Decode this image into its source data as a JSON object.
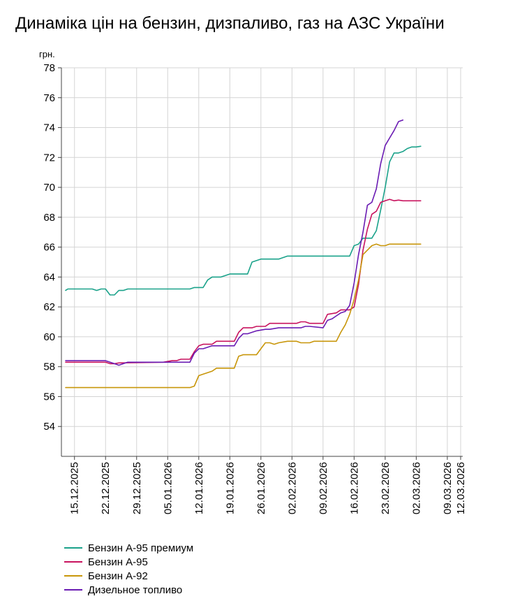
{
  "chart_data": {
    "type": "line",
    "title": "Динаміка цін на бензин, дизпаливо, газ на АЗС України",
    "ylabel": "грн.",
    "xlabel": "",
    "ylim": [
      52,
      78
    ],
    "yticks": [
      54,
      56,
      58,
      60,
      62,
      64,
      66,
      68,
      70,
      72,
      74,
      76,
      78
    ],
    "grid": true,
    "legend_position": "bottom-left",
    "x_start": "13.12.2025",
    "x_end": "12.03.2026",
    "x_ticks": [
      {
        "day": 2,
        "label": "15.12.2025"
      },
      {
        "day": 9,
        "label": "22.12.2025"
      },
      {
        "day": 16,
        "label": "29.12.2025"
      },
      {
        "day": 23,
        "label": "05.01.2026"
      },
      {
        "day": 30,
        "label": "12.01.2026"
      },
      {
        "day": 37,
        "label": "19.01.2026"
      },
      {
        "day": 44,
        "label": "26.01.2026"
      },
      {
        "day": 51,
        "label": "02.02.2026"
      },
      {
        "day": 58,
        "label": "09.02.2026"
      },
      {
        "day": 65,
        "label": "16.02.2026"
      },
      {
        "day": 72,
        "label": "23.02.2026"
      },
      {
        "day": 79,
        "label": "02.03.2026"
      },
      {
        "day": 86,
        "label": "09.03.2026"
      },
      {
        "day": 89,
        "label": "12.03.2026"
      }
    ],
    "series": [
      {
        "name": "Бензин А-95 премиум",
        "color": "#1aa28a",
        "points": [
          [
            0,
            63.1
          ],
          [
            0.5,
            63.2
          ],
          [
            6,
            63.2
          ],
          [
            7,
            63.1
          ],
          [
            8,
            63.2
          ],
          [
            9,
            63.2
          ],
          [
            10,
            62.8
          ],
          [
            11,
            62.8
          ],
          [
            12,
            63.1
          ],
          [
            13,
            63.1
          ],
          [
            14,
            63.2
          ],
          [
            28,
            63.2
          ],
          [
            29,
            63.3
          ],
          [
            31,
            63.3
          ],
          [
            32,
            63.8
          ],
          [
            33,
            64.0
          ],
          [
            35,
            64.0
          ],
          [
            36,
            64.1
          ],
          [
            37,
            64.2
          ],
          [
            41,
            64.2
          ],
          [
            42,
            65.0
          ],
          [
            43,
            65.1
          ],
          [
            44,
            65.2
          ],
          [
            48,
            65.2
          ],
          [
            50,
            65.4
          ],
          [
            63,
            65.4
          ],
          [
            64,
            65.4
          ],
          [
            65,
            66.1
          ],
          [
            66,
            66.2
          ],
          [
            67,
            66.6
          ],
          [
            69,
            66.6
          ],
          [
            70,
            67.1
          ],
          [
            71,
            68.5
          ],
          [
            72,
            70.0
          ],
          [
            73,
            71.7
          ],
          [
            74,
            72.3
          ],
          [
            75,
            72.3
          ],
          [
            76,
            72.4
          ],
          [
            77,
            72.6
          ],
          [
            78,
            72.7
          ],
          [
            79,
            72.7
          ],
          [
            80,
            72.75
          ]
        ]
      },
      {
        "name": "Бензин А-95",
        "color": "#c8135e",
        "points": [
          [
            0,
            58.3
          ],
          [
            9,
            58.3
          ],
          [
            10,
            58.2
          ],
          [
            11,
            58.2
          ],
          [
            12,
            58.25
          ],
          [
            22,
            58.3
          ],
          [
            24,
            58.4
          ],
          [
            25,
            58.4
          ],
          [
            26,
            58.5
          ],
          [
            28,
            58.5
          ],
          [
            29,
            59.0
          ],
          [
            30,
            59.4
          ],
          [
            31,
            59.5
          ],
          [
            33,
            59.5
          ],
          [
            34,
            59.7
          ],
          [
            38,
            59.7
          ],
          [
            39,
            60.3
          ],
          [
            40,
            60.6
          ],
          [
            42,
            60.6
          ],
          [
            43,
            60.7
          ],
          [
            45,
            60.7
          ],
          [
            46,
            60.9
          ],
          [
            48,
            60.9
          ],
          [
            49,
            60.9
          ],
          [
            52,
            60.9
          ],
          [
            53,
            61.0
          ],
          [
            54,
            61.0
          ],
          [
            55,
            60.9
          ],
          [
            58,
            60.9
          ],
          [
            59,
            61.5
          ],
          [
            61,
            61.6
          ],
          [
            62,
            61.8
          ],
          [
            64,
            61.8
          ],
          [
            65,
            62.0
          ],
          [
            66,
            63.5
          ],
          [
            67,
            65.8
          ],
          [
            68,
            67.2
          ],
          [
            69,
            68.2
          ],
          [
            70,
            68.4
          ],
          [
            71,
            69.0
          ],
          [
            72,
            69.1
          ],
          [
            73,
            69.2
          ],
          [
            74,
            69.1
          ],
          [
            75,
            69.15
          ],
          [
            76,
            69.1
          ],
          [
            77,
            69.1
          ],
          [
            78,
            69.1
          ],
          [
            79,
            69.1
          ],
          [
            80,
            69.1
          ]
        ]
      },
      {
        "name": "Бензин А-92",
        "color": "#c8960a",
        "points": [
          [
            0,
            56.6
          ],
          [
            28,
            56.6
          ],
          [
            29,
            56.7
          ],
          [
            30,
            57.4
          ],
          [
            31,
            57.5
          ],
          [
            32,
            57.6
          ],
          [
            33,
            57.7
          ],
          [
            34,
            57.9
          ],
          [
            38,
            57.9
          ],
          [
            39,
            58.7
          ],
          [
            40,
            58.8
          ],
          [
            41,
            58.8
          ],
          [
            43,
            58.8
          ],
          [
            44,
            59.2
          ],
          [
            45,
            59.6
          ],
          [
            46,
            59.6
          ],
          [
            47,
            59.5
          ],
          [
            48,
            59.6
          ],
          [
            50,
            59.7
          ],
          [
            52,
            59.7
          ],
          [
            53,
            59.6
          ],
          [
            55,
            59.6
          ],
          [
            56,
            59.7
          ],
          [
            60,
            59.7
          ],
          [
            61,
            59.7
          ],
          [
            62,
            60.3
          ],
          [
            63,
            60.8
          ],
          [
            64,
            61.5
          ],
          [
            65,
            62.5
          ],
          [
            66,
            63.8
          ],
          [
            67,
            65.5
          ],
          [
            68,
            65.8
          ],
          [
            69,
            66.1
          ],
          [
            70,
            66.2
          ],
          [
            71,
            66.1
          ],
          [
            72,
            66.1
          ],
          [
            73,
            66.2
          ],
          [
            80,
            66.2
          ]
        ]
      },
      {
        "name": "Дизельное топливо",
        "color": "#6a1bb3",
        "points": [
          [
            0,
            58.4
          ],
          [
            9,
            58.4
          ],
          [
            10,
            58.3
          ],
          [
            11,
            58.2
          ],
          [
            12,
            58.1
          ],
          [
            13,
            58.2
          ],
          [
            14,
            58.3
          ],
          [
            28,
            58.3
          ],
          [
            29,
            58.9
          ],
          [
            30,
            59.2
          ],
          [
            31,
            59.2
          ],
          [
            32,
            59.3
          ],
          [
            33,
            59.4
          ],
          [
            38,
            59.4
          ],
          [
            39,
            59.9
          ],
          [
            40,
            60.2
          ],
          [
            41,
            60.2
          ],
          [
            42,
            60.3
          ],
          [
            43,
            60.4
          ],
          [
            45,
            60.5
          ],
          [
            46,
            60.5
          ],
          [
            48,
            60.6
          ],
          [
            52,
            60.6
          ],
          [
            53,
            60.6
          ],
          [
            54,
            60.7
          ],
          [
            55,
            60.7
          ],
          [
            58,
            60.6
          ],
          [
            59,
            61.1
          ],
          [
            60,
            61.2
          ],
          [
            61,
            61.4
          ],
          [
            62,
            61.6
          ],
          [
            63,
            61.7
          ],
          [
            64,
            62.1
          ],
          [
            65,
            63.6
          ],
          [
            66,
            65.5
          ],
          [
            67,
            67.0
          ],
          [
            68,
            68.8
          ],
          [
            69,
            69.0
          ],
          [
            70,
            69.9
          ],
          [
            71,
            71.6
          ],
          [
            72,
            72.8
          ],
          [
            73,
            73.3
          ],
          [
            74,
            73.8
          ],
          [
            75,
            74.4
          ],
          [
            76,
            74.5
          ]
        ]
      }
    ]
  }
}
